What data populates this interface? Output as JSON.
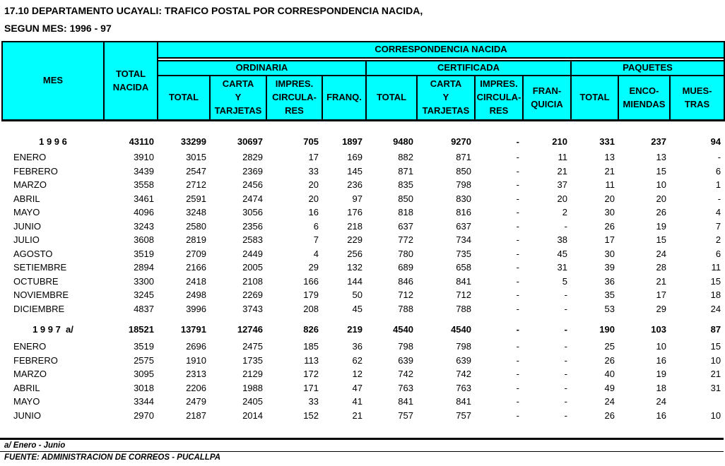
{
  "title_line1": "17.10  DEPARTAMENTO UCAYALI: TRAFICO POSTAL POR CORRESPONDENCIA NACIDA,",
  "title_line2": "SEGUN MES: 1996 - 97",
  "header": {
    "mes": "MES",
    "total_nacida": "TOTAL\nNACIDA",
    "correspondencia": "CORRESPONDENCIA NACIDA",
    "groups": [
      "ORDINARIA",
      "CERTIFICADA",
      "PAQUETES"
    ],
    "subcols": [
      "TOTAL",
      "CARTA\nY\nTARJETAS",
      "IMPRES.\nCIRCULA-\nRES",
      "FRANQ.",
      "TOTAL",
      "CARTA\nY\nTARJETAS",
      "IMPRES.\nCIRCULA-\nRES",
      "FRAN-\nQUICIA",
      "TOTAL",
      "ENCO-\nMIENDAS",
      "MUES-\nTRAS"
    ]
  },
  "rows": [
    {
      "type": "year",
      "label": "1 9 9 6",
      "values": [
        "43110",
        "33299",
        "30697",
        "705",
        "1897",
        "9480",
        "9270",
        "-",
        "210",
        "331",
        "237",
        "94"
      ]
    },
    {
      "type": "month",
      "label": "ENERO",
      "values": [
        "3910",
        "3015",
        "2829",
        "17",
        "169",
        "882",
        "871",
        "-",
        "11",
        "13",
        "13",
        "-"
      ]
    },
    {
      "type": "month",
      "label": "FEBRERO",
      "values": [
        "3439",
        "2547",
        "2369",
        "33",
        "145",
        "871",
        "850",
        "-",
        "21",
        "21",
        "15",
        "6"
      ]
    },
    {
      "type": "month",
      "label": "MARZO",
      "values": [
        "3558",
        "2712",
        "2456",
        "20",
        "236",
        "835",
        "798",
        "-",
        "37",
        "11",
        "10",
        "1"
      ]
    },
    {
      "type": "month",
      "label": "ABRIL",
      "values": [
        "3461",
        "2591",
        "2474",
        "20",
        "97",
        "850",
        "830",
        "-",
        "20",
        "20",
        "20",
        "-"
      ]
    },
    {
      "type": "month",
      "label": "MAYO",
      "values": [
        "4096",
        "3248",
        "3056",
        "16",
        "176",
        "818",
        "816",
        "-",
        "2",
        "30",
        "26",
        "4"
      ]
    },
    {
      "type": "month",
      "label": "JUNIO",
      "values": [
        "3243",
        "2580",
        "2356",
        "6",
        "218",
        "637",
        "637",
        "-",
        "-",
        "26",
        "19",
        "7"
      ]
    },
    {
      "type": "month",
      "label": "JULIO",
      "values": [
        "3608",
        "2819",
        "2583",
        "7",
        "229",
        "772",
        "734",
        "-",
        "38",
        "17",
        "15",
        "2"
      ]
    },
    {
      "type": "month",
      "label": "AGOSTO",
      "values": [
        "3519",
        "2709",
        "2449",
        "4",
        "256",
        "780",
        "735",
        "-",
        "45",
        "30",
        "24",
        "6"
      ]
    },
    {
      "type": "month",
      "label": "SETIEMBRE",
      "values": [
        "2894",
        "2166",
        "2005",
        "29",
        "132",
        "689",
        "658",
        "-",
        "31",
        "39",
        "28",
        "11"
      ]
    },
    {
      "type": "month",
      "label": "OCTUBRE",
      "values": [
        "3300",
        "2418",
        "2108",
        "166",
        "144",
        "846",
        "841",
        "-",
        "5",
        "36",
        "21",
        "15"
      ]
    },
    {
      "type": "month",
      "label": "NOVIEMBRE",
      "values": [
        "3245",
        "2498",
        "2269",
        "179",
        "50",
        "712",
        "712",
        "-",
        "-",
        "35",
        "17",
        "18"
      ]
    },
    {
      "type": "month",
      "label": "DICIEMBRE",
      "values": [
        "4837",
        "3996",
        "3743",
        "208",
        "45",
        "788",
        "788",
        "-",
        "-",
        "53",
        "29",
        "24"
      ]
    },
    {
      "type": "year",
      "label": "1 9 9 7  a/",
      "values": [
        "18521",
        "13791",
        "12746",
        "826",
        "219",
        "4540",
        "4540",
        "-",
        "-",
        "190",
        "103",
        "87"
      ]
    },
    {
      "type": "month",
      "label": "ENERO",
      "values": [
        "3519",
        "2696",
        "2475",
        "185",
        "36",
        "798",
        "798",
        "-",
        "-",
        "25",
        "10",
        "15"
      ]
    },
    {
      "type": "month",
      "label": "FEBRERO",
      "values": [
        "2575",
        "1910",
        "1735",
        "113",
        "62",
        "639",
        "639",
        "-",
        "-",
        "26",
        "16",
        "10"
      ]
    },
    {
      "type": "month",
      "label": "MARZO",
      "values": [
        "3095",
        "2313",
        "2129",
        "172",
        "12",
        "742",
        "742",
        "-",
        "-",
        "40",
        "19",
        "21"
      ]
    },
    {
      "type": "month",
      "label": "ABRIL",
      "values": [
        "3018",
        "2206",
        "1988",
        "171",
        "47",
        "763",
        "763",
        "-",
        "-",
        "49",
        "18",
        "31"
      ]
    },
    {
      "type": "month",
      "label": "MAYO",
      "values": [
        "3344",
        "2479",
        "2405",
        "33",
        "41",
        "841",
        "841",
        "-",
        "-",
        "24",
        "24",
        ""
      ]
    },
    {
      "type": "month",
      "label": "JUNIO",
      "values": [
        "2970",
        "2187",
        "2014",
        "152",
        "21",
        "757",
        "757",
        "-",
        "-",
        "26",
        "16",
        "10"
      ]
    }
  ],
  "footnote": "a/ Enero - Junio",
  "source": "FUENTE: ADMINISTRACION DE CORREOS - PUCALLPA",
  "colors": {
    "header_fill": "#00ffff",
    "border": "#000000",
    "background": "#ffffff",
    "text": "#000000"
  }
}
